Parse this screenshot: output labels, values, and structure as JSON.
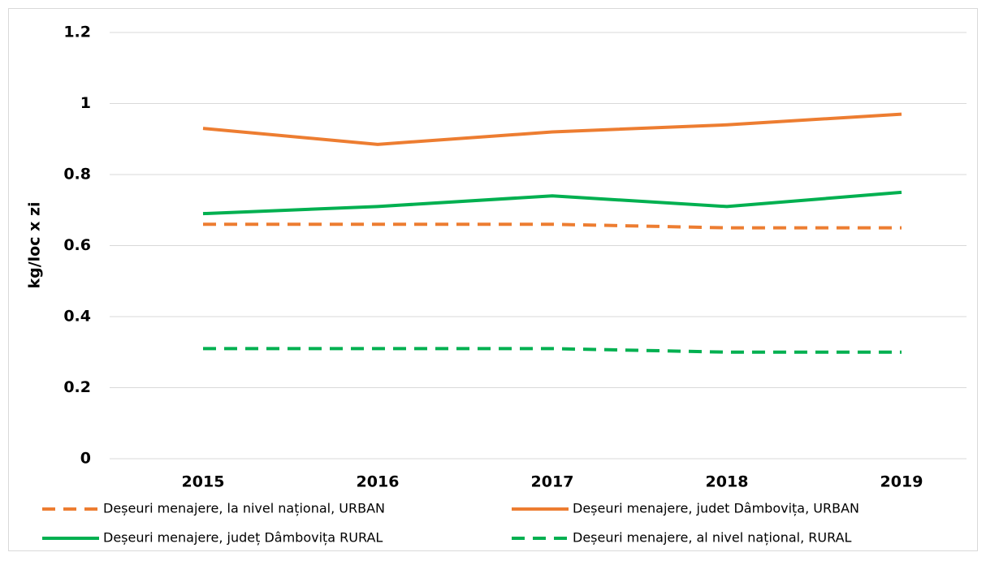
{
  "chart_data": {
    "type": "line",
    "categories": [
      "2015",
      "2016",
      "2017",
      "2018",
      "2019"
    ],
    "series": [
      {
        "name": "Deșeuri menajere, la nivel național, URBAN",
        "color": "#ed7d31",
        "dash": true,
        "values": [
          0.66,
          0.66,
          0.66,
          0.65,
          0.65
        ]
      },
      {
        "name": "Deșeuri menajere, judet Dâmbovița, URBAN",
        "color": "#ed7d31",
        "dash": false,
        "values": [
          0.93,
          0.885,
          0.92,
          0.94,
          0.97
        ]
      },
      {
        "name": "Deșeuri menajere, județ Dâmbovița RURAL",
        "color": "#00b050",
        "dash": false,
        "values": [
          0.69,
          0.71,
          0.74,
          0.71,
          0.75
        ]
      },
      {
        "name": "Deșeuri menajere, al nivel național, RURAL",
        "color": "#00b050",
        "dash": true,
        "values": [
          0.31,
          0.31,
          0.31,
          0.3,
          0.3
        ]
      }
    ],
    "y_label": "kg/loc x  zi",
    "ylim": [
      0,
      1.2
    ],
    "yticks": [
      0,
      0.2,
      0.4,
      0.6,
      0.8,
      1,
      1.2
    ],
    "grid": true
  }
}
